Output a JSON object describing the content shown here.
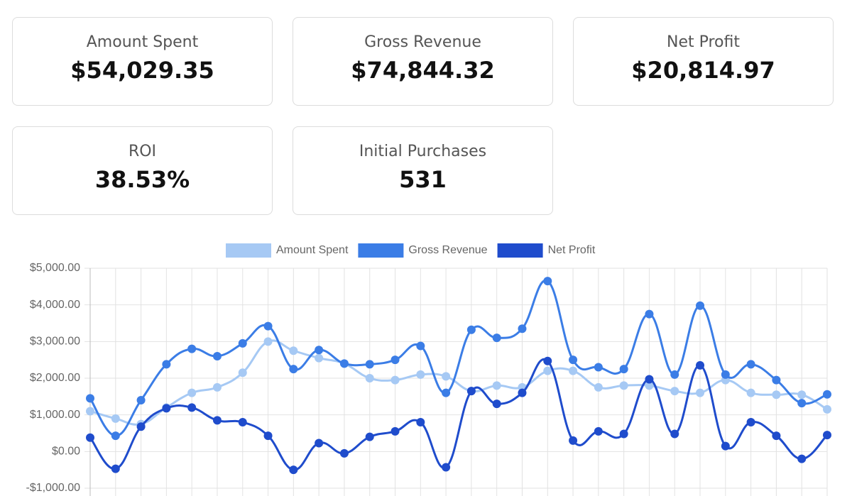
{
  "cards": [
    {
      "label": "Amount Spent",
      "value": "$54,029.35"
    },
    {
      "label": "Gross Revenue",
      "value": "$74,844.32"
    },
    {
      "label": "Net Profit",
      "value": "$20,814.97"
    },
    {
      "label": "ROI",
      "value": "38.53%"
    },
    {
      "label": "Initial Purchases",
      "value": "531"
    }
  ],
  "chart_data": {
    "type": "line",
    "ylim": [
      -1000,
      5000
    ],
    "yticks": [
      {
        "value": -1000,
        "label": "-$1,000.00"
      },
      {
        "value": 0,
        "label": "$0.00"
      },
      {
        "value": 1000,
        "label": "$1,000.00"
      },
      {
        "value": 2000,
        "label": "$2,000.00"
      },
      {
        "value": 3000,
        "label": "$3,000.00"
      },
      {
        "value": 4000,
        "label": "$4,000.00"
      },
      {
        "value": 5000,
        "label": "$5,000.00"
      }
    ],
    "grid": true,
    "legend": "top",
    "series": [
      {
        "name": "Amount Spent",
        "color": "#a6c9f4",
        "values": [
          1100,
          900,
          750,
          1200,
          1600,
          1750,
          2150,
          3000,
          2750,
          2550,
          2400,
          2000,
          1950,
          2100,
          2050,
          1650,
          1800,
          1750,
          2200,
          2200,
          1750,
          1800,
          1800,
          1650,
          1600,
          1950,
          1600,
          1550,
          1550,
          1150
        ]
      },
      {
        "name": "Gross Revenue",
        "color": "#3b7de6",
        "values": [
          1450,
          430,
          1400,
          2380,
          2800,
          2600,
          2950,
          3420,
          2250,
          2770,
          2400,
          2380,
          2500,
          2880,
          1600,
          3320,
          3100,
          3350,
          4650,
          2500,
          2300,
          2250,
          3750,
          2100,
          3980,
          2100,
          2380,
          1950,
          1320,
          1560
        ]
      },
      {
        "name": "Net Profit",
        "color": "#1f4ccc",
        "values": [
          380,
          -470,
          680,
          1180,
          1200,
          850,
          800,
          430,
          -500,
          230,
          -50,
          400,
          550,
          800,
          -430,
          1650,
          1300,
          1600,
          2470,
          300,
          550,
          480,
          1970,
          480,
          2350,
          150,
          800,
          430,
          -200,
          450
        ]
      }
    ]
  }
}
